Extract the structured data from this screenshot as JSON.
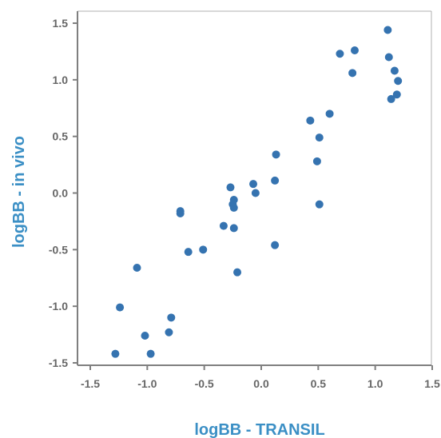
{
  "chart_data": {
    "type": "scatter",
    "title": "",
    "xlabel": "logBB - TRANSIL",
    "ylabel": "logBB - in vivo",
    "xlim": [
      -1.5,
      1.5
    ],
    "ylim": [
      -1.5,
      1.5
    ],
    "x_ticks": [
      -1.5,
      -1.0,
      -0.5,
      0.0,
      0.5,
      1.0,
      1.5
    ],
    "y_ticks": [
      -1.5,
      -1.0,
      -0.5,
      0.0,
      0.5,
      1.0,
      1.5
    ],
    "x_tick_labels": [
      "-1.5",
      "-1.0",
      "-0.5",
      "0.0",
      "0.5",
      "1.0",
      "1.5"
    ],
    "y_tick_labels": [
      "-1.5",
      "-1.0",
      "-0.5",
      "0.0",
      "0.5",
      "1.0",
      "1.5"
    ],
    "grid": false,
    "legend": "none",
    "colors": {
      "points": "#3573b0",
      "axis_title": "#3b8fc5",
      "axis": "#7f7f7f",
      "tick_text": "#666666"
    },
    "points": [
      {
        "x": 1.11,
        "y": 1.44
      },
      {
        "x": 0.82,
        "y": 1.26
      },
      {
        "x": 0.69,
        "y": 1.23
      },
      {
        "x": 1.12,
        "y": 1.2
      },
      {
        "x": 1.17,
        "y": 1.08
      },
      {
        "x": 0.8,
        "y": 1.06
      },
      {
        "x": 1.2,
        "y": 0.99
      },
      {
        "x": 1.19,
        "y": 0.87
      },
      {
        "x": 1.14,
        "y": 0.83
      },
      {
        "x": 0.6,
        "y": 0.7
      },
      {
        "x": 0.43,
        "y": 0.64
      },
      {
        "x": 0.51,
        "y": 0.49
      },
      {
        "x": 0.13,
        "y": 0.34
      },
      {
        "x": 0.49,
        "y": 0.28
      },
      {
        "x": 0.12,
        "y": 0.11
      },
      {
        "x": -0.07,
        "y": 0.08
      },
      {
        "x": -0.27,
        "y": 0.05
      },
      {
        "x": -0.05,
        "y": 0.0
      },
      {
        "x": -0.24,
        "y": -0.06
      },
      {
        "x": -0.25,
        "y": -0.1
      },
      {
        "x": -0.24,
        "y": -0.13
      },
      {
        "x": 0.51,
        "y": -0.1
      },
      {
        "x": -0.71,
        "y": -0.16
      },
      {
        "x": -0.71,
        "y": -0.18
      },
      {
        "x": -0.33,
        "y": -0.29
      },
      {
        "x": -0.24,
        "y": -0.31
      },
      {
        "x": 0.12,
        "y": -0.46
      },
      {
        "x": -0.51,
        "y": -0.5
      },
      {
        "x": -0.64,
        "y": -0.52
      },
      {
        "x": -0.21,
        "y": -0.7
      },
      {
        "x": -1.09,
        "y": -0.66
      },
      {
        "x": -1.24,
        "y": -1.01
      },
      {
        "x": -0.79,
        "y": -1.1
      },
      {
        "x": -0.81,
        "y": -1.23
      },
      {
        "x": -1.02,
        "y": -1.26
      },
      {
        "x": -1.28,
        "y": -1.42
      },
      {
        "x": -0.97,
        "y": -1.42
      }
    ]
  }
}
